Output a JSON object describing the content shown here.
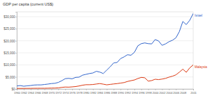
{
  "chart_data": {
    "type": "line",
    "title": "GDP per capita (current US$)",
    "x": [
      1960,
      1961,
      1962,
      1963,
      1964,
      1965,
      1966,
      1967,
      1968,
      1969,
      1970,
      1971,
      1972,
      1973,
      1974,
      1975,
      1976,
      1977,
      1978,
      1979,
      1980,
      1981,
      1982,
      1983,
      1984,
      1985,
      1986,
      1987,
      1988,
      1989,
      1990,
      1991,
      1992,
      1993,
      1994,
      1995,
      1996,
      1997,
      1998,
      1999,
      2000,
      2001,
      2002,
      2003,
      2004,
      2005,
      2006,
      2007,
      2008,
      2009,
      2010,
      2011
    ],
    "series": [
      {
        "name": "Israel",
        "color": "#3366cc",
        "values": [
          1230,
          1410,
          1140,
          1300,
          1430,
          1630,
          1690,
          1690,
          1860,
          2030,
          2240,
          2350,
          2720,
          3420,
          4270,
          4400,
          4210,
          4810,
          4900,
          5720,
          6060,
          6400,
          6630,
          7330,
          7000,
          6400,
          7800,
          9200,
          10800,
          11000,
          12600,
          13300,
          14200,
          14000,
          15200,
          17900,
          18800,
          19100,
          18800,
          18700,
          20500,
          19900,
          18100,
          18700,
          19600,
          20200,
          21200,
          23800,
          28000,
          26700,
          28500,
          31300
        ]
      },
      {
        "name": "Malaysia",
        "color": "#dc3912",
        "values": [
          235,
          224,
          232,
          244,
          256,
          276,
          286,
          290,
          291,
          322,
          358,
          380,
          450,
          660,
          800,
          760,
          870,
          1000,
          1240,
          1560,
          1770,
          1770,
          1850,
          2050,
          2230,
          2000,
          1720,
          1900,
          2080,
          2220,
          2440,
          2650,
          3110,
          3430,
          3730,
          4330,
          4800,
          4640,
          3250,
          3490,
          4030,
          3880,
          4100,
          4400,
          4900,
          5300,
          5850,
          6970,
          8210,
          6920,
          8750,
          9980
        ]
      }
    ],
    "xlim": [
      1960,
      2011
    ],
    "xticks": [
      1960,
      1962,
      1964,
      1966,
      1968,
      1970,
      1972,
      1974,
      1976,
      1978,
      1980,
      1982,
      1984,
      1986,
      1988,
      1990,
      1992,
      1994,
      1996,
      1998,
      2000,
      2002,
      2004,
      2006,
      2008,
      2011
    ],
    "ylim": [
      0,
      32000
    ],
    "yticks": [
      {
        "value": 0,
        "label": "$0"
      },
      {
        "value": 5000,
        "label": "$5,000"
      },
      {
        "value": 10000,
        "label": "$10,000"
      },
      {
        "value": 15000,
        "label": "$15,000"
      },
      {
        "value": 20000,
        "label": "$20,000"
      },
      {
        "value": 25000,
        "label": "$25,000"
      },
      {
        "value": 30000,
        "label": "$30,000"
      }
    ],
    "grid": true
  }
}
